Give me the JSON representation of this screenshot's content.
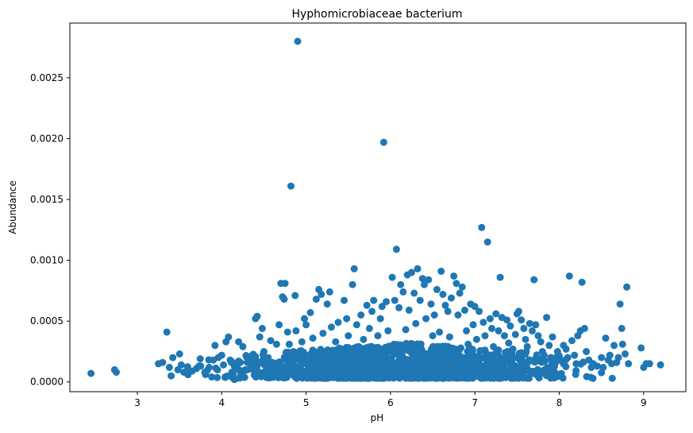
{
  "chart_data": {
    "type": "scatter",
    "title": "Hyphomicrobiaceae bacterium",
    "xlabel": "pH",
    "ylabel": "Abundance",
    "xlim": [
      2.2,
      9.5
    ],
    "ylim": [
      -8e-05,
      0.00295
    ],
    "xticks": [
      3,
      4,
      5,
      6,
      7,
      8,
      9
    ],
    "xtick_labels": [
      "3",
      "4",
      "5",
      "6",
      "7",
      "8",
      "9"
    ],
    "yticks": [
      0,
      0.0005,
      0.001,
      0.0015,
      0.002,
      0.0025
    ],
    "ytick_labels": [
      "0.0000",
      "0.0005",
      "0.0010",
      "0.0015",
      "0.0020",
      "0.0025"
    ],
    "grid": false,
    "marker_color": "#1f77b4",
    "points": [
      [
        2.45,
        7e-05
      ],
      [
        2.73,
        0.0001
      ],
      [
        2.75,
        8e-05
      ],
      [
        3.3,
        0.00016
      ],
      [
        3.25,
        0.00015
      ],
      [
        3.35,
        0.00041
      ],
      [
        3.38,
        0.00012
      ],
      [
        3.4,
        5e-05
      ],
      [
        3.42,
        0.0002
      ],
      [
        3.48,
        0.0001
      ],
      [
        3.5,
        0.00023
      ],
      [
        3.52,
        0.00014
      ],
      [
        3.55,
        8e-05
      ],
      [
        3.6,
        6e-05
      ],
      [
        3.65,
        9e-05
      ],
      [
        3.7,
        0.00011
      ],
      [
        3.75,
        0.00013
      ],
      [
        3.8,
        8e-05
      ],
      [
        3.85,
        0.00012
      ],
      [
        3.9,
        0.00018
      ],
      [
        3.92,
        0.0003
      ],
      [
        3.95,
        0.0001
      ],
      [
        4.0,
        0.00022
      ],
      [
        4.02,
        0.00014
      ],
      [
        4.05,
        0.00033
      ],
      [
        4.08,
        0.00037
      ],
      [
        4.1,
        0.00018
      ],
      [
        4.12,
        8e-05
      ],
      [
        4.15,
        2e-05
      ],
      [
        4.18,
        0.00012
      ],
      [
        4.2,
        0.00033
      ],
      [
        4.22,
        0.00016
      ],
      [
        4.25,
        0.00029
      ],
      [
        4.28,
        0.0001
      ],
      [
        4.3,
        0.0002
      ],
      [
        4.35,
        0.00015
      ],
      [
        4.38,
        0.0001
      ],
      [
        4.4,
        0.00052
      ],
      [
        4.42,
        0.00054
      ],
      [
        4.45,
        0.00037
      ],
      [
        4.48,
        0.00044
      ],
      [
        4.5,
        0.00025
      ],
      [
        4.55,
        0.0002
      ],
      [
        4.58,
        0.00034
      ],
      [
        4.6,
        0.00016
      ],
      [
        4.62,
        0.00012
      ],
      [
        4.65,
        0.00031
      ],
      [
        4.68,
        0.00047
      ],
      [
        4.7,
        0.00081
      ],
      [
        4.72,
        0.0007
      ],
      [
        4.74,
        0.00068
      ],
      [
        4.75,
        0.00081
      ],
      [
        4.78,
        0.00041
      ],
      [
        4.8,
        0.00031
      ],
      [
        4.82,
        0.00161
      ],
      [
        4.85,
        0.00025
      ],
      [
        4.87,
        0.00071
      ],
      [
        4.9,
        0.0028
      ],
      [
        4.88,
        0.00042
      ],
      [
        4.92,
        0.00018
      ],
      [
        4.95,
        0.00033
      ],
      [
        4.98,
        0.00052
      ],
      [
        5.0,
        0.00047
      ],
      [
        5.02,
        0.00021
      ],
      [
        5.05,
        0.00057
      ],
      [
        5.08,
        0.00036
      ],
      [
        5.1,
        0.00025
      ],
      [
        5.12,
        0.00068
      ],
      [
        5.15,
        0.00076
      ],
      [
        5.18,
        0.00072
      ],
      [
        5.2,
        0.0004
      ],
      [
        5.22,
        0.00018
      ],
      [
        5.25,
        0.00064
      ],
      [
        5.28,
        0.00074
      ],
      [
        5.3,
        0.00045
      ],
      [
        5.32,
        0.00022
      ],
      [
        5.35,
        0.00033
      ],
      [
        5.38,
        0.00049
      ],
      [
        5.4,
        0.00015
      ],
      [
        5.42,
        0.00027
      ],
      [
        5.45,
        0.00067
      ],
      [
        5.48,
        0.00052
      ],
      [
        5.5,
        0.00038
      ],
      [
        5.52,
        0.00012
      ],
      [
        5.55,
        0.0008
      ],
      [
        5.57,
        0.00093
      ],
      [
        5.6,
        0.00047
      ],
      [
        5.62,
        0.00028
      ],
      [
        5.65,
        0.00055
      ],
      [
        5.68,
        0.00035
      ],
      [
        5.7,
        0.00015
      ],
      [
        5.72,
        0.00063
      ],
      [
        5.75,
        0.00044
      ],
      [
        5.78,
        0.00058
      ],
      [
        5.8,
        0.00067
      ],
      [
        5.82,
        0.00025
      ],
      [
        5.85,
        0.00038
      ],
      [
        5.88,
        0.00052
      ],
      [
        5.9,
        0.00062
      ],
      [
        5.92,
        0.00197
      ],
      [
        5.95,
        0.00066
      ],
      [
        5.97,
        0.00042
      ],
      [
        6.0,
        0.00028
      ],
      [
        6.02,
        0.00086
      ],
      [
        6.05,
        0.00067
      ],
      [
        6.07,
        0.00109
      ],
      [
        6.1,
        0.00061
      ],
      [
        6.12,
        0.0008
      ],
      [
        6.15,
        0.00074
      ],
      [
        6.18,
        0.00043
      ],
      [
        6.2,
        0.00088
      ],
      [
        6.22,
        0.00059
      ],
      [
        6.25,
        0.0009
      ],
      [
        6.28,
        0.00073
      ],
      [
        6.3,
        0.00048
      ],
      [
        6.32,
        0.00093
      ],
      [
        6.35,
        0.00067
      ],
      [
        6.38,
        0.00085
      ],
      [
        6.4,
        0.0008
      ],
      [
        6.42,
        0.00052
      ],
      [
        6.45,
        0.00084
      ],
      [
        6.48,
        0.00064
      ],
      [
        6.5,
        0.00038
      ],
      [
        6.52,
        0.00055
      ],
      [
        6.55,
        0.00076
      ],
      [
        6.58,
        0.00041
      ],
      [
        6.6,
        0.00091
      ],
      [
        6.62,
        0.00072
      ],
      [
        6.65,
        0.00063
      ],
      [
        6.68,
        0.00058
      ],
      [
        6.7,
        0.00037
      ],
      [
        6.72,
        0.00069
      ],
      [
        6.75,
        0.00087
      ],
      [
        6.78,
        0.00081
      ],
      [
        6.8,
        0.00055
      ],
      [
        6.82,
        0.00073
      ],
      [
        6.85,
        0.00078
      ],
      [
        6.88,
        0.00059
      ],
      [
        6.9,
        0.00042
      ],
      [
        6.92,
        0.00031
      ],
      [
        6.95,
        0.00064
      ],
      [
        6.98,
        0.00047
      ],
      [
        7.0,
        0.00062
      ],
      [
        7.02,
        0.00035
      ],
      [
        7.05,
        0.00058
      ],
      [
        7.08,
        0.00127
      ],
      [
        7.1,
        0.00049
      ],
      [
        7.12,
        0.00038
      ],
      [
        7.15,
        0.00115
      ],
      [
        7.18,
        0.00052
      ],
      [
        7.2,
        0.00044
      ],
      [
        7.22,
        0.00029
      ],
      [
        7.25,
        0.00056
      ],
      [
        7.28,
        0.00042
      ],
      [
        7.3,
        0.00086
      ],
      [
        7.32,
        0.00053
      ],
      [
        7.35,
        0.00038
      ],
      [
        7.38,
        0.00051
      ],
      [
        7.4,
        0.00032
      ],
      [
        7.42,
        0.00046
      ],
      [
        7.45,
        0.00027
      ],
      [
        7.48,
        0.00039
      ],
      [
        7.5,
        0.00056
      ],
      [
        7.52,
        0.00058
      ],
      [
        7.55,
        0.00051
      ],
      [
        7.58,
        0.00044
      ],
      [
        7.6,
        0.00035
      ],
      [
        7.62,
        0.00029
      ],
      [
        7.65,
        0.00048
      ],
      [
        7.68,
        0.00042
      ],
      [
        7.7,
        0.00084
      ],
      [
        7.72,
        0.00047
      ],
      [
        7.75,
        0.00038
      ],
      [
        7.78,
        0.00033
      ],
      [
        7.8,
        0.00025
      ],
      [
        7.82,
        0.00022
      ],
      [
        7.85,
        0.00053
      ],
      [
        7.88,
        0.0003
      ],
      [
        7.9,
        0.0002
      ],
      [
        7.92,
        0.00037
      ],
      [
        7.95,
        0.00015
      ],
      [
        7.98,
        0.00025
      ],
      [
        8.0,
        0.00018
      ],
      [
        8.05,
        0.0003
      ],
      [
        8.08,
        0.00027
      ],
      [
        8.1,
        0.0002
      ],
      [
        8.12,
        0.00087
      ],
      [
        8.15,
        0.00034
      ],
      [
        8.18,
        0.00022
      ],
      [
        8.2,
        0.00015
      ],
      [
        8.22,
        0.00038
      ],
      [
        8.25,
        0.00042
      ],
      [
        8.27,
        0.00082
      ],
      [
        8.3,
        0.00044
      ],
      [
        8.32,
        0.00025
      ],
      [
        8.35,
        0.00018
      ],
      [
        8.38,
        0.00012
      ],
      [
        8.4,
        0.00015
      ],
      [
        8.45,
        0.00013
      ],
      [
        8.5,
        0.0002
      ],
      [
        8.52,
        0.00012
      ],
      [
        8.55,
        0.00036
      ],
      [
        8.58,
        0.00018
      ],
      [
        8.6,
        0.00022
      ],
      [
        8.62,
        0.00015
      ],
      [
        8.65,
        0.0003
      ],
      [
        8.68,
        0.00016
      ],
      [
        8.7,
        0.0002
      ],
      [
        8.72,
        0.00064
      ],
      [
        8.74,
        0.00044
      ],
      [
        8.75,
        0.00031
      ],
      [
        8.78,
        0.00023
      ],
      [
        8.8,
        0.00078
      ],
      [
        8.82,
        0.00015
      ],
      [
        8.97,
        0.00028
      ],
      [
        9.0,
        0.00012
      ],
      [
        9.03,
        0.00015
      ],
      [
        9.07,
        0.00015
      ],
      [
        9.2,
        0.00014
      ]
    ],
    "dense_band": {
      "x_range": [
        3.3,
        8.85
      ],
      "y_range": [
        3e-05,
        0.00032
      ],
      "peak_x": 6.2,
      "count": 1400
    }
  }
}
